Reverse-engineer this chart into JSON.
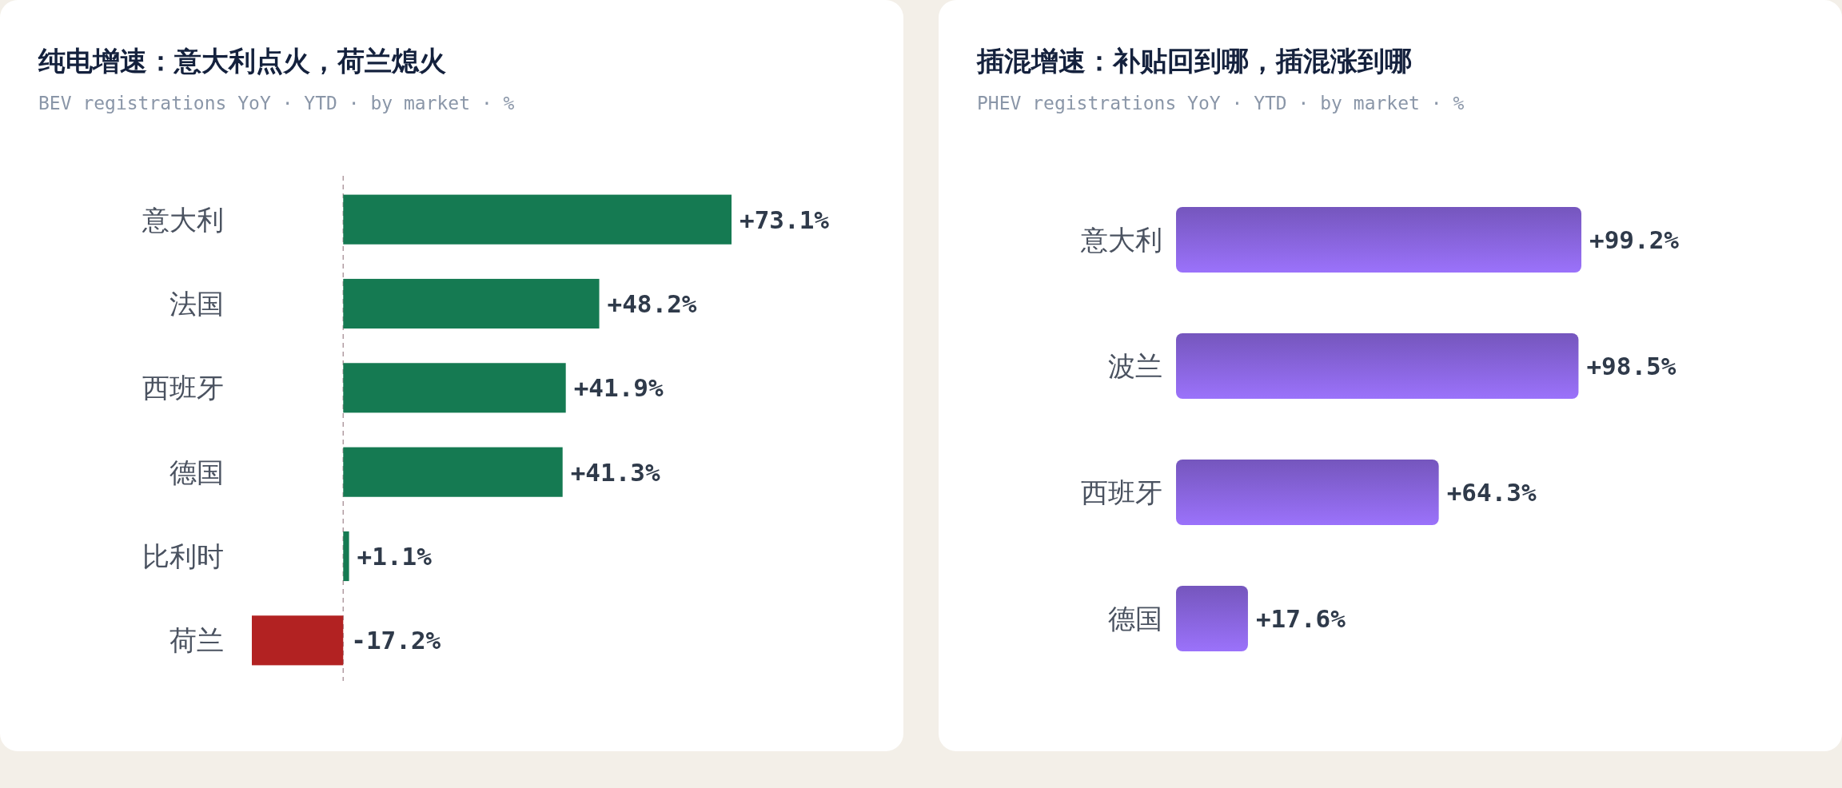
{
  "chart_data": [
    {
      "type": "bar",
      "orientation": "horizontal",
      "title": "纯电增速：意大利点火，荷兰熄火",
      "subtitle": "BEV registrations YoY · YTD · by market · %",
      "categories": [
        "意大利",
        "法国",
        "西班牙",
        "德国",
        "比利时",
        "荷兰"
      ],
      "values": [
        73.1,
        48.2,
        41.9,
        41.3,
        1.1,
        -17.2
      ],
      "colors": [
        "#157a52",
        "#157a52",
        "#157a52",
        "#157a52",
        "#157a52",
        "#b22222"
      ],
      "value_labels": [
        "+73.1%",
        "+48.2%",
        "+41.9%",
        "+41.3%",
        "+1.1%",
        "-17.2%"
      ],
      "tick_labels": "y",
      "ref_lines": [
        {
          "axis": "x",
          "value": 0,
          "color": "#b09aa0",
          "line_style": "dashed"
        }
      ]
    },
    {
      "type": "bar",
      "orientation": "horizontal",
      "title": "插混增速：补贴回到哪，插混涨到哪",
      "subtitle": "PHEV registrations YoY · YTD · by market · %",
      "categories": [
        "意大利",
        "波兰",
        "西班牙",
        "德国"
      ],
      "values": [
        99.2,
        98.5,
        64.3,
        17.6
      ],
      "color": "#8461d6",
      "value_labels": [
        "+99.2%",
        "+98.5%",
        "+64.3%",
        "+17.6%"
      ],
      "tick_labels": "y"
    }
  ]
}
